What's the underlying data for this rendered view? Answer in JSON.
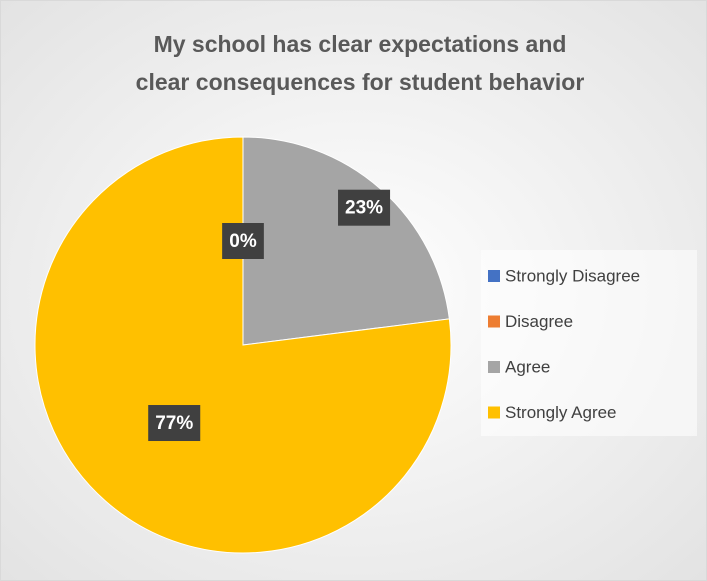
{
  "chart_data": {
    "type": "pie",
    "title": [
      "My school has clear expectations and",
      "clear consequences for student behavior"
    ],
    "categories": [
      "Strongly Disagree",
      "Disagree",
      "Agree",
      "Strongly Agree"
    ],
    "values": [
      0,
      0,
      23,
      77
    ],
    "value_labels": [
      "0%",
      "0%",
      "23%",
      "77%"
    ],
    "colors": [
      "#4472c4",
      "#ed7d31",
      "#a5a5a5",
      "#ffc000"
    ],
    "legend": "right"
  }
}
